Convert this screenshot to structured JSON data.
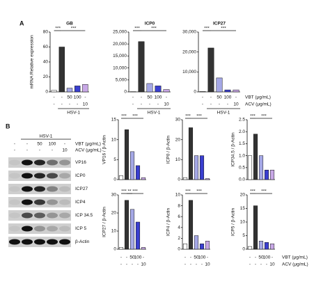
{
  "panel_a": "A",
  "panel_b": "B",
  "treatments": {
    "hsv": "HSV-1",
    "vbt_label": "VBT (μg/mL)",
    "acv_label": "ACV (μg/mL)",
    "vbt": [
      "-",
      "-",
      "50",
      "100",
      "-"
    ],
    "acv": [
      "-",
      "-",
      "-",
      "-",
      "10"
    ]
  },
  "blot": {
    "header": "HSV-1",
    "vbt_label": "VBT (μg/mL)",
    "acv_label": "ACV (μg/mL)",
    "vbt": [
      "-",
      "-",
      "50",
      "100",
      "-"
    ],
    "acv": [
      "-",
      "-",
      "-",
      "-",
      "10"
    ],
    "rows": [
      "VP16",
      "ICP0",
      "ICP27",
      "ICP4",
      "ICP 34.5",
      "ICP 5",
      "β-Actin"
    ]
  },
  "chart_data": [
    {
      "type": "bar",
      "title": "GB",
      "ylabel": "mRNA Relative expression",
      "values": [
        2,
        60,
        5,
        8,
        10
      ],
      "colors": [
        "#ffffff",
        "#333333",
        "#a5a8e6",
        "#3a3fd0",
        "#c8a8e6"
      ],
      "ylim": [
        0,
        80
      ],
      "yticks": [
        0,
        20,
        40,
        60,
        80
      ],
      "annotations": [
        "***",
        "***"
      ]
    },
    {
      "type": "bar",
      "title": "ICP0",
      "values": [
        100,
        21000,
        3500,
        2500,
        1000
      ],
      "colors": [
        "#ffffff",
        "#333333",
        "#a5a8e6",
        "#3a3fd0",
        "#c8a8e6"
      ],
      "ylim": [
        0,
        25000
      ],
      "yticks": [
        0,
        {
          "value": 5000,
          "label": "5,000"
        },
        {
          "value": 10000,
          "label": "10,000"
        },
        {
          "value": 15000,
          "label": "15,000"
        },
        {
          "value": 20000,
          "label": "20,000"
        },
        {
          "value": 25000,
          "label": "25,000"
        }
      ],
      "annotations": [
        "***",
        "***"
      ]
    },
    {
      "type": "bar",
      "title": "ICP27",
      "values": [
        200,
        22000,
        7000,
        1000,
        1000
      ],
      "colors": [
        "#ffffff",
        "#333333",
        "#a5a8e6",
        "#3a3fd0",
        "#c8a8e6"
      ],
      "ylim": [
        0,
        30000
      ],
      "yticks": [
        0,
        {
          "value": 10000,
          "label": "10,000"
        },
        {
          "value": 20000,
          "label": "20,000"
        },
        {
          "value": 30000,
          "label": "30,000"
        }
      ],
      "annotations": [
        "***",
        "***"
      ]
    },
    {
      "type": "bar",
      "ylabel": "VP16 / β-Actin",
      "values": [
        1,
        12.5,
        7,
        3.5,
        0.5
      ],
      "colors": [
        "#ffffff",
        "#333333",
        "#a5a8e6",
        "#3a3fd0",
        "#c8a8e6"
      ],
      "ylim": [
        0,
        15
      ],
      "yticks": [
        0,
        5,
        10,
        15
      ],
      "annotations": [
        "***",
        "***"
      ]
    },
    {
      "type": "bar",
      "ylabel": "ICP0 / β-Actin",
      "values": [
        1,
        26,
        12,
        12,
        0.5
      ],
      "colors": [
        "#ffffff",
        "#333333",
        "#a5a8e6",
        "#3a3fd0",
        "#c8a8e6"
      ],
      "ylim": [
        0,
        30
      ],
      "yticks": [
        0,
        10,
        20,
        30
      ],
      "annotations": [
        "***",
        "***"
      ]
    },
    {
      "type": "bar",
      "ylabel": "ICP34.5 / β-Actin",
      "values": [
        1,
        1.9,
        1.0,
        0.4,
        0.4
      ],
      "colors": [
        "#ffffff",
        "#333333",
        "#a5a8e6",
        "#3a3fd0",
        "#c8a8e6"
      ],
      "ylim": [
        0,
        2.5
      ],
      "yticks": [
        {
          "value": 0,
          "label": "0.0"
        },
        0.5,
        {
          "value": 1,
          "label": "1.0"
        },
        1.5,
        {
          "value": 2,
          "label": "2.0"
        },
        2.5
      ],
      "annotations": [
        "***",
        "***"
      ]
    },
    {
      "type": "bar",
      "ylabel": "ICP27 / β-Actin",
      "values": [
        1,
        27,
        22,
        15,
        1
      ],
      "colors": [
        "#ffffff",
        "#333333",
        "#a5a8e6",
        "#3a3fd0",
        "#c8a8e6"
      ],
      "ylim": [
        0,
        30
      ],
      "yticks": [
        0,
        10,
        20,
        30
      ],
      "annotations": [
        "***",
        "**",
        "***"
      ]
    },
    {
      "type": "bar",
      "ylabel": "ICP4 / β-Actin",
      "values": [
        1,
        9,
        2.5,
        1,
        1.5
      ],
      "colors": [
        "#ffffff",
        "#333333",
        "#a5a8e6",
        "#3a3fd0",
        "#c8a8e6"
      ],
      "ylim": [
        0,
        10
      ],
      "yticks": [
        0,
        2,
        4,
        6,
        8,
        10
      ],
      "annotations": [
        "***",
        "***"
      ]
    },
    {
      "type": "bar",
      "ylabel": "ICP5 / β-Actin",
      "values": [
        1,
        16,
        3,
        2.5,
        2
      ],
      "colors": [
        "#ffffff",
        "#333333",
        "#a5a8e6",
        "#3a3fd0",
        "#c8a8e6"
      ],
      "ylim": [
        0,
        20
      ],
      "yticks": [
        0,
        5,
        10,
        15,
        20
      ],
      "annotations": [
        "***",
        "***"
      ]
    }
  ]
}
